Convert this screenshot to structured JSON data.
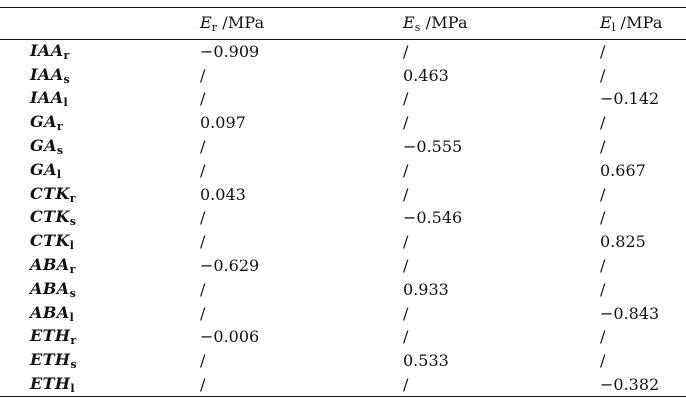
{
  "page": {
    "background": "#ffffff",
    "text_color": "#111111",
    "rule_color": "#1a1a1a"
  },
  "table": {
    "header": [
      {
        "symbol": "",
        "subscript": "",
        "unit": ""
      },
      {
        "symbol": "E",
        "subscript": "r",
        "unit": " /MPa"
      },
      {
        "symbol": "E",
        "subscript": "s",
        "unit": " /MPa"
      },
      {
        "symbol": "E",
        "subscript": "l",
        "unit": " /MPa"
      }
    ],
    "empty_marker": "/",
    "rows": [
      {
        "name": "IAA",
        "subscript": "r",
        "values": [
          "−0.909",
          "/",
          "/"
        ]
      },
      {
        "name": "IAA",
        "subscript": "s",
        "values": [
          "/",
          "0.463",
          "/"
        ]
      },
      {
        "name": "IAA",
        "subscript": "l",
        "values": [
          "/",
          "/",
          "−0.142"
        ]
      },
      {
        "name": "GA",
        "subscript": "r",
        "values": [
          "0.097",
          "/",
          "/"
        ]
      },
      {
        "name": "GA",
        "subscript": "s",
        "values": [
          "/",
          "−0.555",
          "/"
        ]
      },
      {
        "name": "GA",
        "subscript": "l",
        "values": [
          "/",
          "/",
          "0.667"
        ]
      },
      {
        "name": "CTK",
        "subscript": "r",
        "values": [
          "0.043",
          "/",
          "/"
        ]
      },
      {
        "name": "CTK",
        "subscript": "s",
        "values": [
          "/",
          "−0.546",
          "/"
        ]
      },
      {
        "name": "CTK",
        "subscript": "l",
        "values": [
          "/",
          "/",
          "0.825"
        ]
      },
      {
        "name": "ABA",
        "subscript": "r",
        "values": [
          "−0.629",
          "/",
          "/"
        ]
      },
      {
        "name": "ABA",
        "subscript": "s",
        "values": [
          "/",
          "0.933",
          "/"
        ]
      },
      {
        "name": "ABA",
        "subscript": "l",
        "values": [
          "/",
          "/",
          "−0.843"
        ]
      },
      {
        "name": "ETH",
        "subscript": "r",
        "values": [
          "−0.006",
          "/",
          "/"
        ]
      },
      {
        "name": "ETH",
        "subscript": "s",
        "values": [
          "/",
          "0.533",
          "/"
        ]
      },
      {
        "name": "ETH",
        "subscript": "l",
        "values": [
          "/",
          "/",
          "−0.382"
        ]
      }
    ]
  }
}
